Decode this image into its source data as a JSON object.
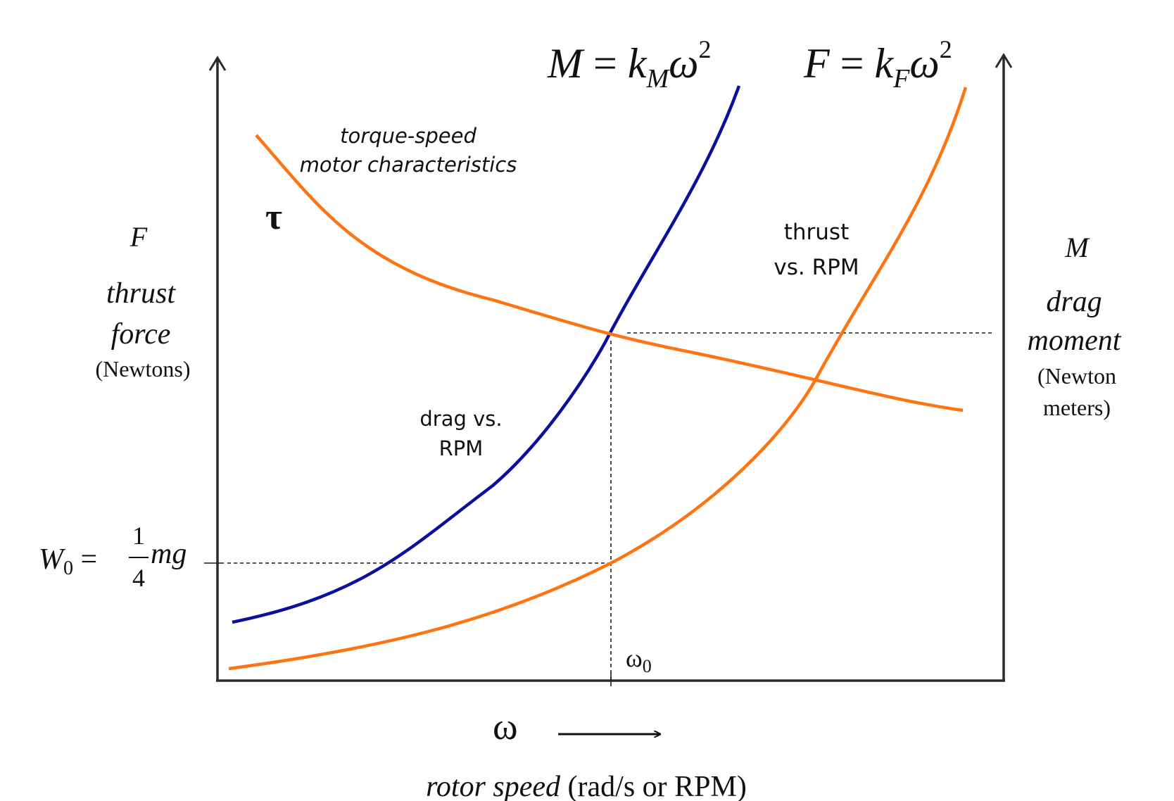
{
  "colors": {
    "blue_curve": "#0a0f9c",
    "orange_curve": "#ff7412",
    "axis": "#2b2b2b",
    "guide": "#1a1a1a",
    "text": "#111111"
  },
  "equations": {
    "moment": {
      "lhs": "M",
      "eq": " = ",
      "k": "k",
      "sub": "M",
      "var": "ω",
      "exp": "2"
    },
    "force": {
      "lhs": "F",
      "eq": " = ",
      "k": "k",
      "sub": "F",
      "var": "ω",
      "exp": "2"
    }
  },
  "curve_labels": {
    "torque_line1": "torque-speed",
    "torque_line2": "motor characteristics",
    "tau": "τ",
    "thrust_line1": "thrust",
    "thrust_line2": "vs. RPM",
    "drag_line1": "drag vs.",
    "drag_line2": "RPM"
  },
  "left_axis": {
    "symbol": "F",
    "name_line1": "thrust",
    "name_line2": "force",
    "unit": "(Newtons)"
  },
  "right_axis": {
    "symbol": "M",
    "name_line1": "drag",
    "name_line2": "moment",
    "unit_line1": "(Newton",
    "unit_line2": "meters)"
  },
  "w0_label": {
    "W": "W",
    "sub": "0",
    "eq": " = ",
    "numerator": "1",
    "denominator": "4",
    "mg": "mg"
  },
  "omega0_label": {
    "omega": "ω",
    "sub": "0"
  },
  "x_axis": {
    "omega": "ω",
    "caption_italic": "rotor speed",
    "caption_rest": " (rad/s or RPM)"
  }
}
